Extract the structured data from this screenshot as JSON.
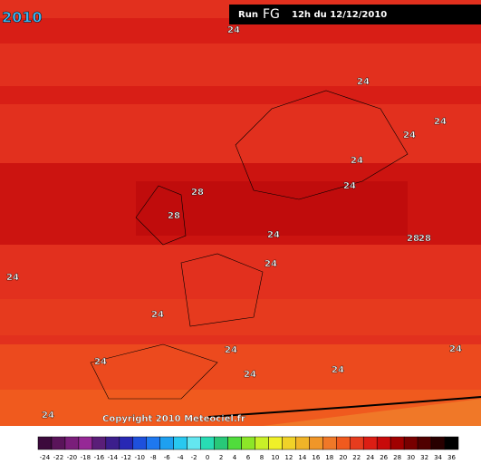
{
  "year_tag": "2010",
  "header": {
    "run": "Run",
    "model": "FG",
    "time": "12h du 12/12/2010"
  },
  "contour_labels": [
    "24",
    "24",
    "24",
    "24",
    "24",
    "24",
    "28",
    "28",
    "24",
    "28",
    "28",
    "24",
    "24",
    "24",
    "24",
    "24",
    "24",
    "24",
    "24",
    "24"
  ],
  "copyright": "Copyright 2010 Meteociel.fr",
  "colorbar": {
    "labels": [
      "-24",
      "-22",
      "-20",
      "-18",
      "-16",
      "-14",
      "-12",
      "-10",
      "-8",
      "-6",
      "-4",
      "-2",
      "0",
      "2",
      "4",
      "6",
      "8",
      "10",
      "12",
      "14",
      "16",
      "18",
      "20",
      "22",
      "24",
      "26",
      "28",
      "30",
      "32",
      "34",
      "36"
    ],
    "colors": [
      "#3c0a3c",
      "#5a145a",
      "#7a1e7a",
      "#962896",
      "#5a1e78",
      "#3c1e8c",
      "#2828b4",
      "#1e50dc",
      "#1e78f0",
      "#1ea0f0",
      "#28c8f0",
      "#64e6f0",
      "#28dcb4",
      "#28c878",
      "#50dc3c",
      "#8ce628",
      "#c8f028",
      "#f0f028",
      "#f0d228",
      "#f0b428",
      "#f09628",
      "#f07828",
      "#f05a1e",
      "#e63c1e",
      "#dc1e14",
      "#c80a0a",
      "#a00000",
      "#780000",
      "#500000",
      "#280000",
      "#000000"
    ]
  }
}
